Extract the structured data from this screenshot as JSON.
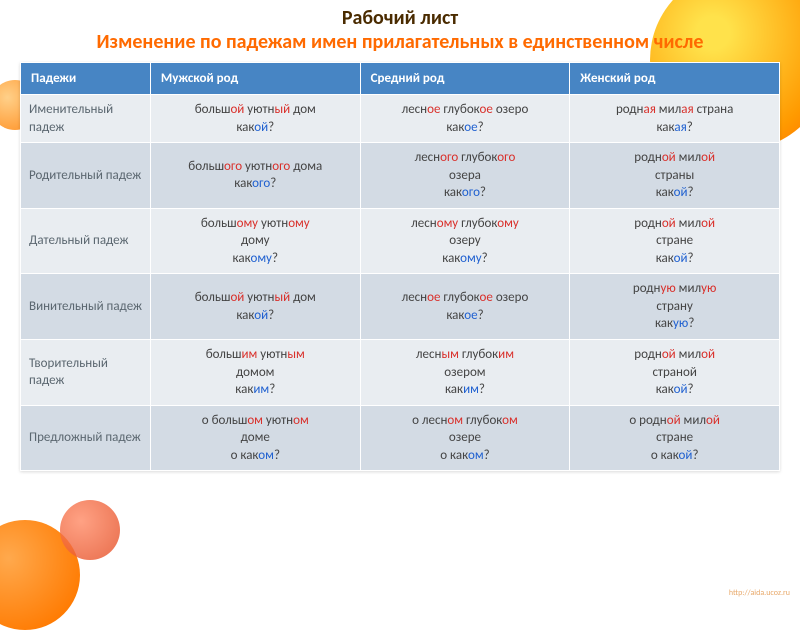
{
  "title": "Рабочий лист",
  "subtitle": "Изменение по падежам имен прилагательных в единственном числе",
  "headers": [
    "Падежи",
    "Мужской род",
    "Средний род",
    "Женский род"
  ],
  "rows": [
    {
      "case": "Именительный падеж",
      "m": [
        [
          "больш",
          "ой",
          " уютн",
          "ый",
          " дом"
        ],
        [
          "как",
          "ой",
          "?"
        ]
      ],
      "n": [
        [
          "лесн",
          "ое",
          " глубок",
          "ое",
          " озеро"
        ],
        [
          "как",
          "ое",
          "?"
        ]
      ],
      "f": [
        [
          "родн",
          "ая",
          " мил",
          "ая",
          " страна"
        ],
        [
          "как",
          "ая",
          "?"
        ]
      ]
    },
    {
      "case": "Родительный падеж",
      "m": [
        [
          "больш",
          "ого",
          " уютн",
          "ого",
          " дома"
        ],
        [
          "как",
          "ого",
          "?"
        ]
      ],
      "n": [
        [
          "лесн",
          "ого",
          " глубок",
          "ого"
        ],
        [
          "озера"
        ],
        [
          "как",
          "ого",
          "?"
        ]
      ],
      "f": [
        [
          "родн",
          "ой",
          " мил",
          "ой"
        ],
        [
          "страны"
        ],
        [
          "как",
          "ой",
          "?"
        ]
      ]
    },
    {
      "case": "Дательный падеж",
      "m": [
        [
          "больш",
          "ому",
          " уютн",
          "ому"
        ],
        [
          "дому"
        ],
        [
          "как",
          "ому",
          "?"
        ]
      ],
      "n": [
        [
          "лесн",
          "ому",
          " глубок",
          "ому"
        ],
        [
          "озеру"
        ],
        [
          "как",
          "ому",
          "?"
        ]
      ],
      "f": [
        [
          "родн",
          "ой",
          "  мил",
          "ой"
        ],
        [
          "стране"
        ],
        [
          "как",
          "ой",
          "?"
        ]
      ]
    },
    {
      "case": "Винительный падеж",
      "m": [
        [
          "больш",
          "ой",
          " уютн",
          "ый",
          " дом"
        ],
        [
          "как",
          "ой",
          "?"
        ]
      ],
      "n": [
        [
          "лесн",
          "ое",
          " глубок",
          "ое",
          " озеро"
        ],
        [
          "как",
          "ое",
          "?"
        ]
      ],
      "f": [
        [
          "родн",
          "ую",
          " мил",
          "ую"
        ],
        [
          "страну"
        ],
        [
          "как",
          "ую",
          "?"
        ]
      ]
    },
    {
      "case": "Творительный падеж",
      "m": [
        [
          "больш",
          "им",
          " уютн",
          "ым"
        ],
        [
          "домом"
        ],
        [
          "как",
          "им",
          "?"
        ]
      ],
      "n": [
        [
          "лесн",
          "ым",
          " глубок",
          "им"
        ],
        [
          "озером"
        ],
        [
          "как",
          "им",
          "?"
        ]
      ],
      "f": [
        [
          "родн",
          "ой",
          " мил",
          "ой"
        ],
        [
          "страной"
        ],
        [
          "как",
          "ой",
          "?"
        ]
      ]
    },
    {
      "case": "Предложный падеж",
      "m": [
        [
          "о больш",
          "ом",
          " уютн",
          "ом"
        ],
        [
          "доме"
        ],
        [
          "о как",
          "ом",
          "?"
        ]
      ],
      "n": [
        [
          "о лесн",
          "ом",
          " глубок",
          "ом"
        ],
        [
          "озере"
        ],
        [
          "о как",
          "ом",
          "?"
        ]
      ],
      "f": [
        [
          "о родн",
          "ой",
          " мил",
          "ой"
        ],
        [
          "стране"
        ],
        [
          "о как",
          "ой",
          "?"
        ]
      ]
    }
  ],
  "colors": {
    "ending_red": "#d9302b",
    "question_blue": "#1f60d0",
    "header_bg": "#4785c4",
    "row_odd": "#e9edf1",
    "row_even": "#d3dbe4",
    "title_color": "#4a2b00",
    "subtitle_color": "#ff6a00"
  },
  "footer": "http://aida.ucoz.ru"
}
